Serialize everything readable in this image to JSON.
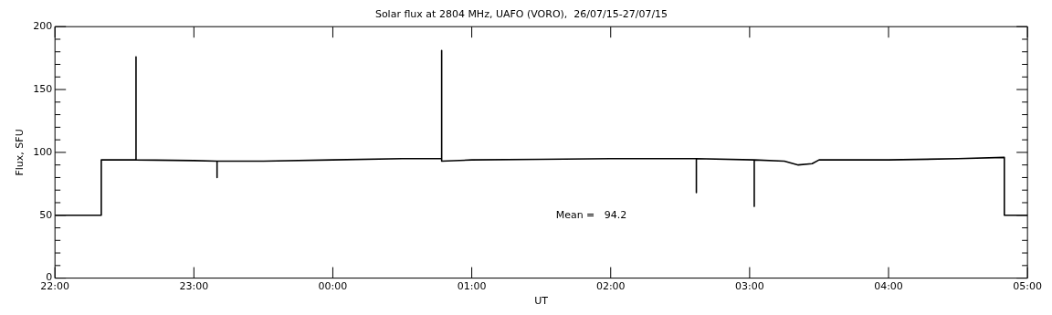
{
  "chart_data": {
    "type": "line",
    "title": "Solar flux at 2804 MHz, UAFO (VORO),  26/07/15-27/07/15",
    "xlabel": "UT",
    "ylabel": "Flux, SFU",
    "annotations": [
      "Mean =   94.2"
    ],
    "x": [
      "--07-26T22:00",
      "--07-26T22:20",
      "--07-26T22:20",
      "--07-26T22:35",
      "--07-26T22:35",
      "--07-26T22:35",
      "--07-26T23:00",
      "--07-26T23:10",
      "--07-26T23:10",
      "--07-26T23:10",
      "--07-26T23:30",
      "--07-27T00:00",
      "--07-27T00:30",
      "--07-27T00:47",
      "--07-27T00:47",
      "--07-27T00:47",
      "--07-27T01:00",
      "--07-27T01:30",
      "--07-27T02:00",
      "--07-27T02:30",
      "--07-27T02:37",
      "--07-27T02:37",
      "--07-27T02:37",
      "--07-27T03:02",
      "--07-27T03:02",
      "--07-27T03:02",
      "--07-27T03:15",
      "--07-27T03:21",
      "--07-27T03:27",
      "--07-27T03:30",
      "--07-27T04:00",
      "--07-27T04:30",
      "--07-27T04:50",
      "--07-27T04:50",
      "--07-27T05:00"
    ],
    "series": [
      {
        "color": "#000000",
        "values": [
          50,
          50,
          94,
          94,
          176,
          94,
          93.5,
          93,
          80,
          93,
          93,
          94,
          95,
          95,
          181,
          93,
          94,
          94.5,
          95,
          95,
          95,
          68,
          95,
          94,
          57,
          94,
          93,
          90,
          91,
          94,
          94,
          95,
          96,
          50,
          50
        ]
      }
    ],
    "xlim": [
      "--07-26T22:00",
      "--07-27T05:00"
    ],
    "xticks": [
      {
        "value": "--07-26T22:00",
        "label": "22:00"
      },
      {
        "value": "--07-26T23:00",
        "label": "23:00"
      },
      {
        "value": "--07-27T00:00",
        "label": "00:00"
      },
      {
        "value": "--07-27T01:00",
        "label": "01:00"
      },
      {
        "value": "--07-27T02:00",
        "label": "02:00"
      },
      {
        "value": "--07-27T03:00",
        "label": "03:00"
      },
      {
        "value": "--07-27T04:00",
        "label": "04:00"
      },
      {
        "value": "--07-27T05:00",
        "label": "05:00"
      }
    ],
    "ylim": [
      0,
      200
    ],
    "yticks": [
      0,
      {
        "value": 10,
        "label": null
      },
      {
        "value": 20,
        "label": null
      },
      {
        "value": 30,
        "label": null
      },
      {
        "value": 40,
        "label": null
      },
      50,
      {
        "value": 60,
        "label": null
      },
      {
        "value": 70,
        "label": null
      },
      {
        "value": 80,
        "label": null
      },
      {
        "value": 90,
        "label": null
      },
      100,
      {
        "value": 110,
        "label": null
      },
      {
        "value": 120,
        "label": null
      },
      {
        "value": 130,
        "label": null
      },
      {
        "value": 140,
        "label": null
      },
      150,
      {
        "value": 160,
        "label": null
      },
      {
        "value": 170,
        "label": null
      },
      {
        "value": 180,
        "label": null
      },
      {
        "value": 190,
        "label": null
      },
      200
    ],
    "grid": false,
    "legend": false,
    "marker": "none",
    "line_style": "solid"
  }
}
